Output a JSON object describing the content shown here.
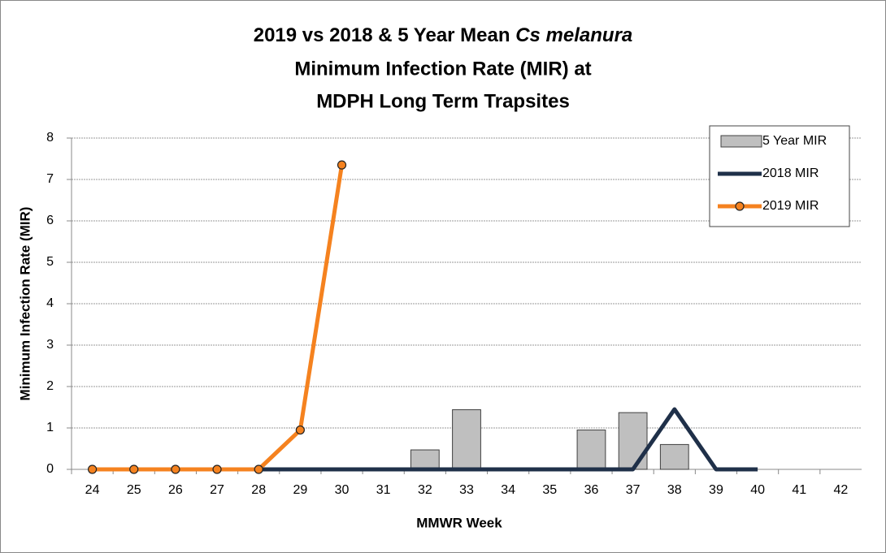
{
  "chart_data": {
    "type": "combo",
    "title": [
      [
        "2019 vs 2018 & 5 Year Mean",
        "Cs melanura"
      ],
      [
        "Minimum Infection Rate (MIR) at"
      ],
      [
        "MDPH Long Term Trapsites"
      ]
    ],
    "x_label": "MMWR Week",
    "y_label": "Minimum Infection Rate (MIR)",
    "categories": [
      "24",
      "25",
      "26",
      "27",
      "28",
      "29",
      "30",
      "31",
      "32",
      "33",
      "34",
      "35",
      "36",
      "37",
      "38",
      "39",
      "40",
      "41",
      "42"
    ],
    "ylim": [
      0,
      8
    ],
    "yticks": [
      0,
      1,
      2,
      3,
      4,
      5,
      6,
      7,
      8
    ],
    "grid": true,
    "legend": "top-right",
    "series": [
      {
        "name": "5 Year MIR",
        "type": "bar",
        "color": "#bfbfbf",
        "values": [
          null,
          null,
          null,
          null,
          null,
          null,
          null,
          null,
          0.47,
          1.44,
          null,
          null,
          0.95,
          1.37,
          0.6,
          null,
          null,
          null,
          null
        ]
      },
      {
        "name": "2018 MIR",
        "type": "line",
        "color": "#1f3049",
        "values": [
          0,
          0,
          0,
          0,
          0,
          0,
          0,
          0,
          0,
          0,
          0,
          0,
          0,
          0,
          1.45,
          0,
          0,
          null,
          null
        ]
      },
      {
        "name": "2019 MIR",
        "type": "line",
        "color": "#f5821f",
        "marker": true,
        "values": [
          0,
          0,
          0,
          0,
          0,
          0.95,
          7.35,
          null,
          null,
          null,
          null,
          null,
          null,
          null,
          null,
          null,
          null,
          null,
          null
        ]
      }
    ]
  }
}
